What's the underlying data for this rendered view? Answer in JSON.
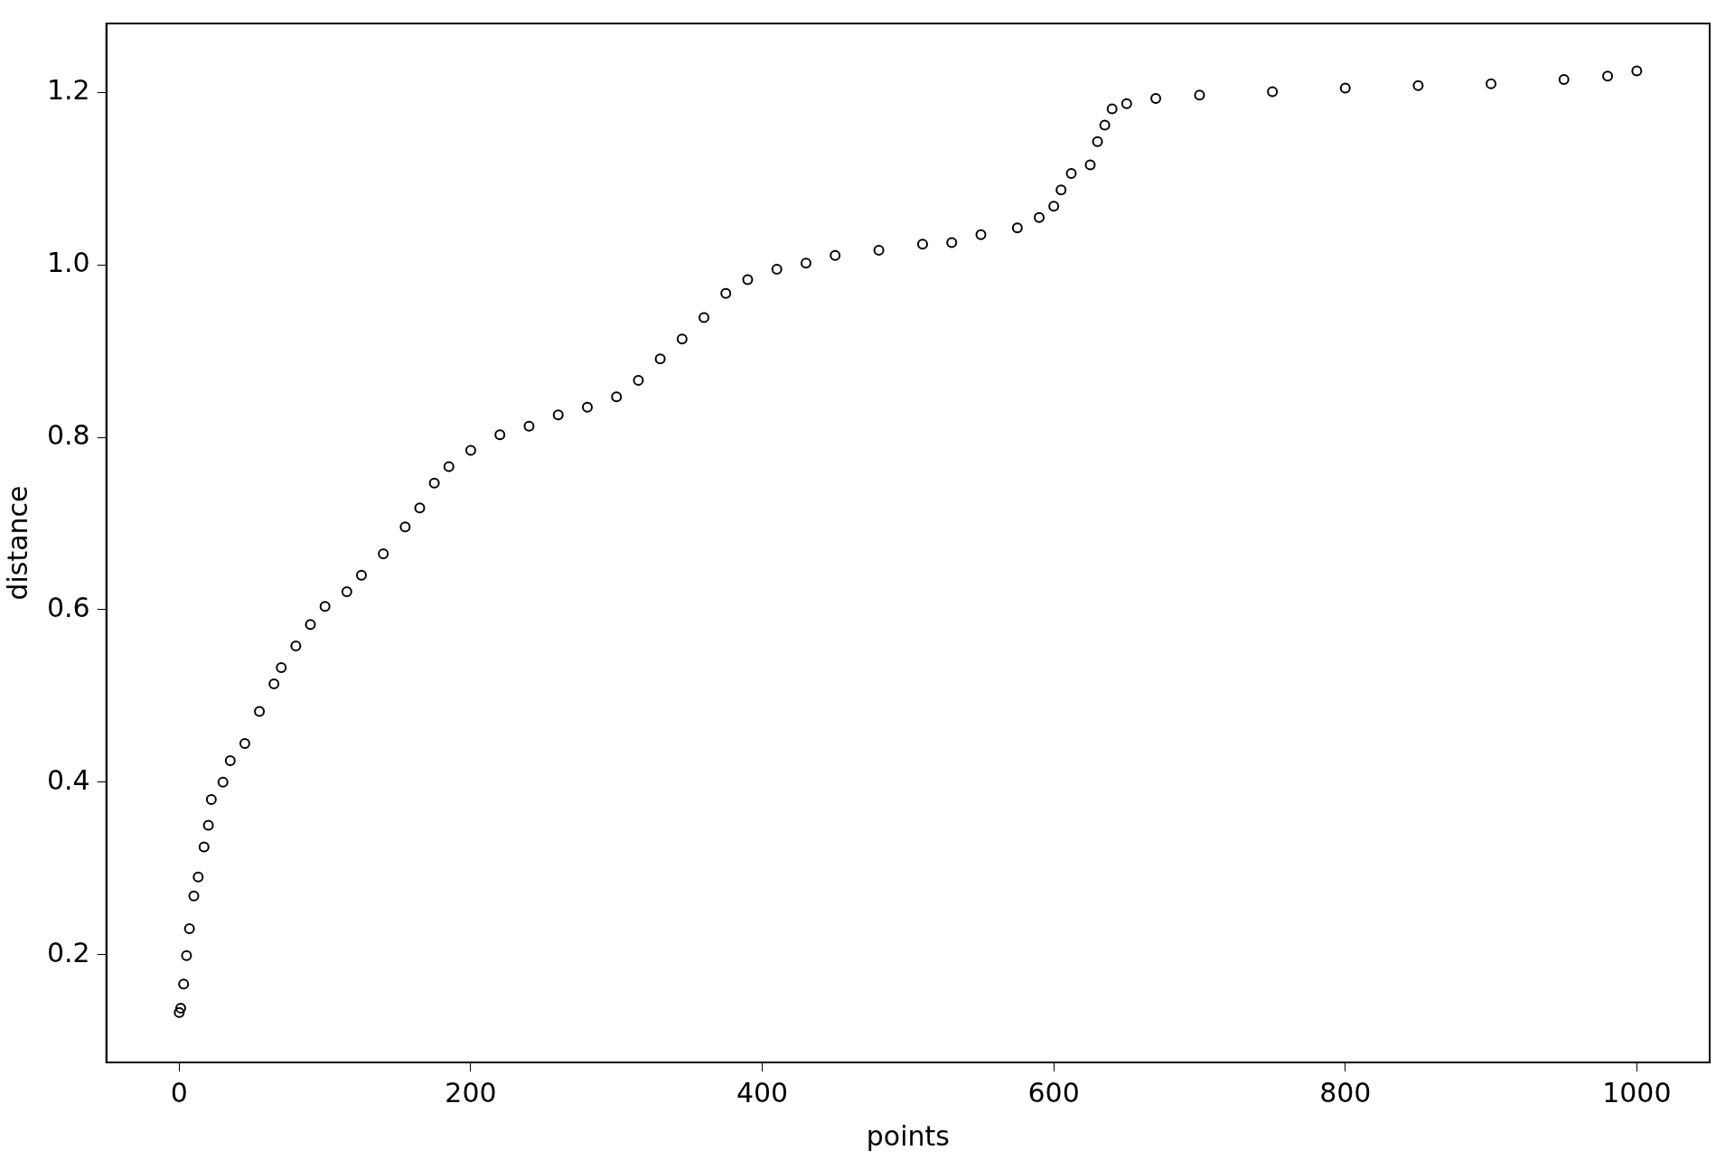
{
  "chart_data": {
    "type": "scatter",
    "xlabel": "points",
    "ylabel": "distance",
    "marker": "circle",
    "grid": false,
    "legend": false,
    "xlim": [
      -50,
      1050
    ],
    "xticks": [
      0,
      200,
      400,
      600,
      800,
      1000
    ],
    "ylim": [
      0.075,
      1.28
    ],
    "yticks": [
      0.2,
      0.4,
      0.6,
      0.8,
      {
        "value": 1,
        "label": "1.0"
      },
      1.2
    ],
    "series": [
      {
        "color": "#000000",
        "x": [
          0,
          1,
          3,
          5,
          7,
          10,
          13,
          17,
          20,
          22,
          30,
          35,
          45,
          55,
          65,
          70,
          80,
          90,
          100,
          115,
          125,
          140,
          155,
          165,
          175,
          185,
          200,
          220,
          240,
          260,
          280,
          300,
          315,
          330,
          345,
          360,
          375,
          390,
          410,
          430,
          450,
          480,
          510,
          530,
          550,
          575,
          590,
          600,
          605,
          612,
          625,
          630,
          635,
          640,
          650,
          670,
          700,
          750,
          800,
          850,
          900,
          950,
          980,
          1000
        ],
        "values": [
          0.133,
          0.138,
          0.166,
          0.199,
          0.23,
          0.268,
          0.29,
          0.325,
          0.35,
          0.38,
          0.4,
          0.425,
          0.445,
          0.482,
          0.514,
          0.533,
          0.558,
          0.583,
          0.604,
          0.621,
          0.64,
          0.665,
          0.696,
          0.718,
          0.747,
          0.766,
          0.785,
          0.803,
          0.813,
          0.826,
          0.835,
          0.847,
          0.866,
          0.891,
          0.914,
          0.939,
          0.967,
          0.983,
          0.995,
          1.002,
          1.011,
          1.017,
          1.024,
          1.026,
          1.035,
          1.043,
          1.055,
          1.068,
          1.087,
          1.106,
          1.116,
          1.143,
          1.162,
          1.181,
          1.187,
          1.193,
          1.197,
          1.201,
          1.205,
          1.208,
          1.21,
          1.215,
          1.219,
          1.225
        ]
      }
    ]
  }
}
